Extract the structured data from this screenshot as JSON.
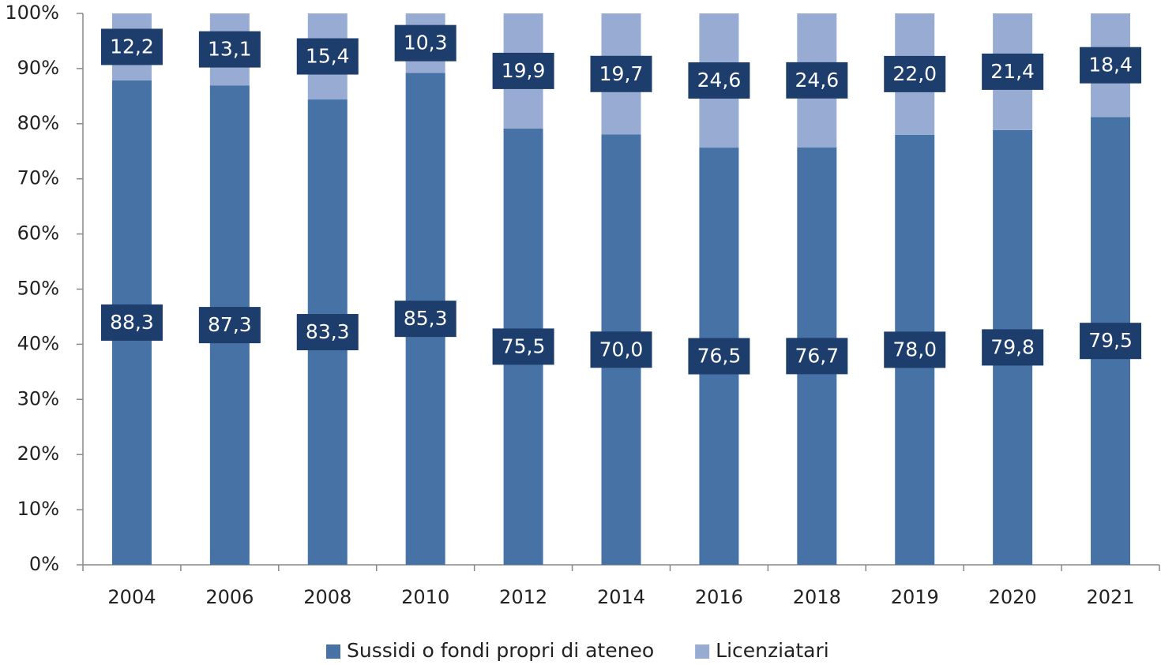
{
  "chart_data": {
    "type": "bar",
    "stacked": "percent",
    "categories": [
      "2004",
      "2006",
      "2008",
      "2010",
      "2012",
      "2014",
      "2016",
      "2018",
      "2019",
      "2020",
      "2021"
    ],
    "series": [
      {
        "name": "Sussidi o fondi propri di ateneo",
        "color": "#4672a6",
        "values": [
          88.3,
          87.3,
          83.3,
          85.3,
          75.5,
          70.0,
          76.5,
          76.7,
          78.0,
          79.8,
          79.5
        ],
        "value_labels": [
          "88,3",
          "87,3",
          "83,3",
          "85,3",
          "75,5",
          "70,0",
          "76,5",
          "76,7",
          "78,0",
          "79,8",
          "79,5"
        ]
      },
      {
        "name": "Licenziatari",
        "color": "#98acd3",
        "values": [
          12.2,
          13.1,
          15.4,
          10.3,
          19.9,
          19.7,
          24.6,
          24.6,
          22.0,
          21.4,
          18.4
        ],
        "value_labels": [
          "12,2",
          "13,1",
          "15,4",
          "10,3",
          "19,9",
          "19,7",
          "24,6",
          "24,6",
          "22,0",
          "21,4",
          "18,4"
        ]
      }
    ],
    "ylim": [
      0,
      100
    ],
    "yticks": [
      {
        "value": 0,
        "label": "0%"
      },
      {
        "value": 10,
        "label": "10%"
      },
      {
        "value": 20,
        "label": "20%"
      },
      {
        "value": 30,
        "label": "30%"
      },
      {
        "value": 40,
        "label": "40%"
      },
      {
        "value": 50,
        "label": "50%"
      },
      {
        "value": 60,
        "label": "60%"
      },
      {
        "value": 70,
        "label": "70%"
      },
      {
        "value": 80,
        "label": "80%"
      },
      {
        "value": 90,
        "label": "90%"
      },
      {
        "value": 100,
        "label": "100%"
      }
    ],
    "grid": false,
    "legend": "bottom",
    "label_box_color": "#1d3e6d"
  }
}
